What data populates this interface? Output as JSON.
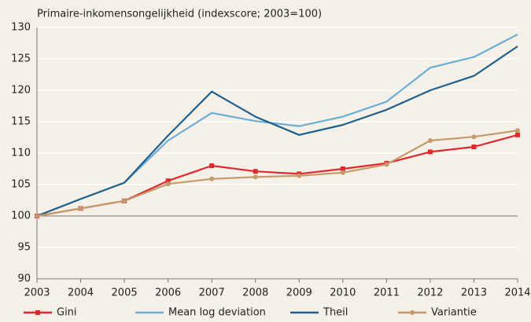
{
  "chart_data": {
    "type": "line",
    "title": "Primaire-inkomensongelijkheid (indexscore; 2003=100)",
    "categories": [
      "2003",
      "2004",
      "2005",
      "2006",
      "2007",
      "2008",
      "2009",
      "2010",
      "2011",
      "2012",
      "2013",
      "2014"
    ],
    "series": [
      {
        "name": "Gini",
        "color": "#e0282e",
        "marker": "square",
        "values": [
          100,
          101.2,
          102.4,
          105.6,
          108,
          107.1,
          106.7,
          107.5,
          108.4,
          110.2,
          111,
          112.9
        ]
      },
      {
        "name": "Mean log deviation",
        "color": "#6aaed6",
        "values": [
          100,
          102.7,
          105.3,
          112,
          116.4,
          115.1,
          114.3,
          115.8,
          118.2,
          123.6,
          125.3,
          128.9
        ]
      },
      {
        "name": "Theil",
        "color": "#1f5f8b",
        "values": [
          100,
          102.7,
          105.3,
          112.8,
          119.8,
          115.8,
          112.9,
          114.5,
          116.9,
          120,
          122.3,
          127
        ]
      },
      {
        "name": "Variantie",
        "color": "#c49a6c",
        "marker": "circle",
        "values": [
          100,
          101.2,
          102.4,
          105.1,
          105.9,
          106.2,
          106.4,
          106.9,
          108.2,
          112,
          112.6,
          113.6
        ]
      }
    ],
    "ylim": [
      90,
      130
    ],
    "yticks": [
      90,
      95,
      100,
      105,
      110,
      115,
      120,
      125,
      130
    ],
    "grid": true,
    "legend": "bottom"
  }
}
